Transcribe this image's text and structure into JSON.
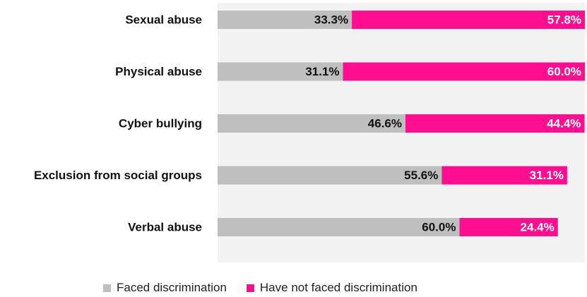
{
  "chart_data": {
    "type": "bar",
    "orientation": "horizontal",
    "stacked": true,
    "categories": [
      "Sexual abuse",
      "Physical abuse",
      "Cyber bullying",
      "Exclusion from social groups",
      "Verbal abuse"
    ],
    "series": [
      {
        "name": "Faced discrimination",
        "values": [
          33.3,
          31.1,
          46.6,
          55.6,
          60.0
        ],
        "labels": [
          "33.3%",
          "31.1%",
          "46.6%",
          "55.6%",
          "60.0%"
        ],
        "color": "#bfbfbf"
      },
      {
        "name": "Have not faced discrimination",
        "values": [
          57.8,
          60.0,
          44.4,
          31.1,
          24.4
        ],
        "labels": [
          "57.8%",
          "60.0%",
          "44.4%",
          "31.1%",
          "24.4%"
        ],
        "color": "#ff0f8f"
      }
    ],
    "xlim": [
      0,
      91.1
    ],
    "legend_position": "bottom",
    "grid": false,
    "background_color": "#f2f2f2"
  }
}
